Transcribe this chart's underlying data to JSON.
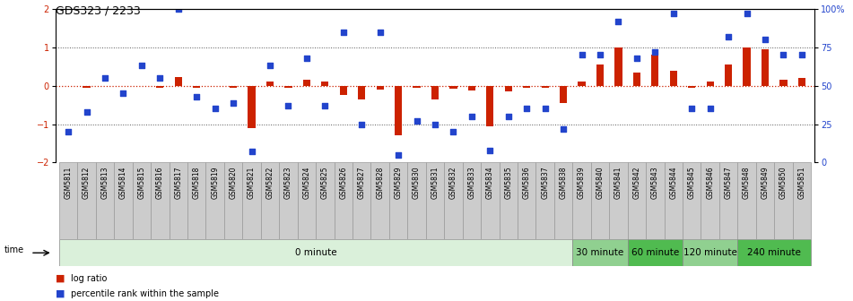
{
  "title": "GDS323 / 2233",
  "samples": [
    "GSM5811",
    "GSM5812",
    "GSM5813",
    "GSM5814",
    "GSM5815",
    "GSM5816",
    "GSM5817",
    "GSM5818",
    "GSM5819",
    "GSM5820",
    "GSM5821",
    "GSM5822",
    "GSM5823",
    "GSM5824",
    "GSM5825",
    "GSM5826",
    "GSM5827",
    "GSM5828",
    "GSM5829",
    "GSM5830",
    "GSM5831",
    "GSM5832",
    "GSM5833",
    "GSM5834",
    "GSM5835",
    "GSM5836",
    "GSM5837",
    "GSM5838",
    "GSM5839",
    "GSM5840",
    "GSM5841",
    "GSM5842",
    "GSM5843",
    "GSM5844",
    "GSM5845",
    "GSM5846",
    "GSM5847",
    "GSM5848",
    "GSM5849",
    "GSM5850",
    "GSM5851"
  ],
  "log_ratio": [
    0.0,
    -0.05,
    0.0,
    0.0,
    0.0,
    -0.05,
    0.22,
    -0.05,
    0.0,
    -0.05,
    -1.1,
    0.12,
    -0.05,
    0.15,
    0.12,
    -0.25,
    -0.35,
    -0.1,
    -1.3,
    -0.05,
    -0.35,
    -0.08,
    -0.12,
    -1.05,
    -0.15,
    -0.05,
    -0.05,
    -0.45,
    0.1,
    0.55,
    1.0,
    0.35,
    0.8,
    0.4,
    -0.05,
    0.1,
    0.55,
    1.0,
    0.95,
    0.15,
    0.2
  ],
  "percentile": [
    20,
    33,
    55,
    45,
    63,
    55,
    100,
    43,
    35,
    39,
    7,
    63,
    37,
    68,
    37,
    85,
    25,
    85,
    5,
    27,
    25,
    20,
    30,
    8,
    30,
    35,
    35,
    22,
    70,
    70,
    92,
    68,
    72,
    97,
    35,
    35,
    82,
    97,
    80,
    70,
    70
  ],
  "time_groups": [
    {
      "label": "0 minute",
      "start": 0,
      "end": 28,
      "color": "#daf0da"
    },
    {
      "label": "30 minute",
      "start": 28,
      "end": 31,
      "color": "#90d090"
    },
    {
      "label": "60 minute",
      "start": 31,
      "end": 34,
      "color": "#50bb50"
    },
    {
      "label": "120 minute",
      "start": 34,
      "end": 37,
      "color": "#90d090"
    },
    {
      "label": "240 minute",
      "start": 37,
      "end": 41,
      "color": "#50bb50"
    }
  ],
  "right_ytick_labels": [
    "100%",
    "75",
    "50",
    "25",
    "0"
  ],
  "right_ytick_values": [
    100,
    75,
    50,
    25,
    0
  ],
  "left_ytick_values": [
    -2,
    -1,
    0,
    1,
    2
  ],
  "bar_color": "#cc2200",
  "dot_color": "#2244cc",
  "bg_color": "#ffffff",
  "xtick_bg": "#cccccc",
  "xtick_border": "#aaaaaa",
  "zero_line_color": "#cc2200",
  "dot_line_color": "#555555",
  "title_fontsize": 9,
  "tick_fontsize": 7,
  "sample_fontsize": 5.5,
  "timebar_fontsize": 7.5
}
